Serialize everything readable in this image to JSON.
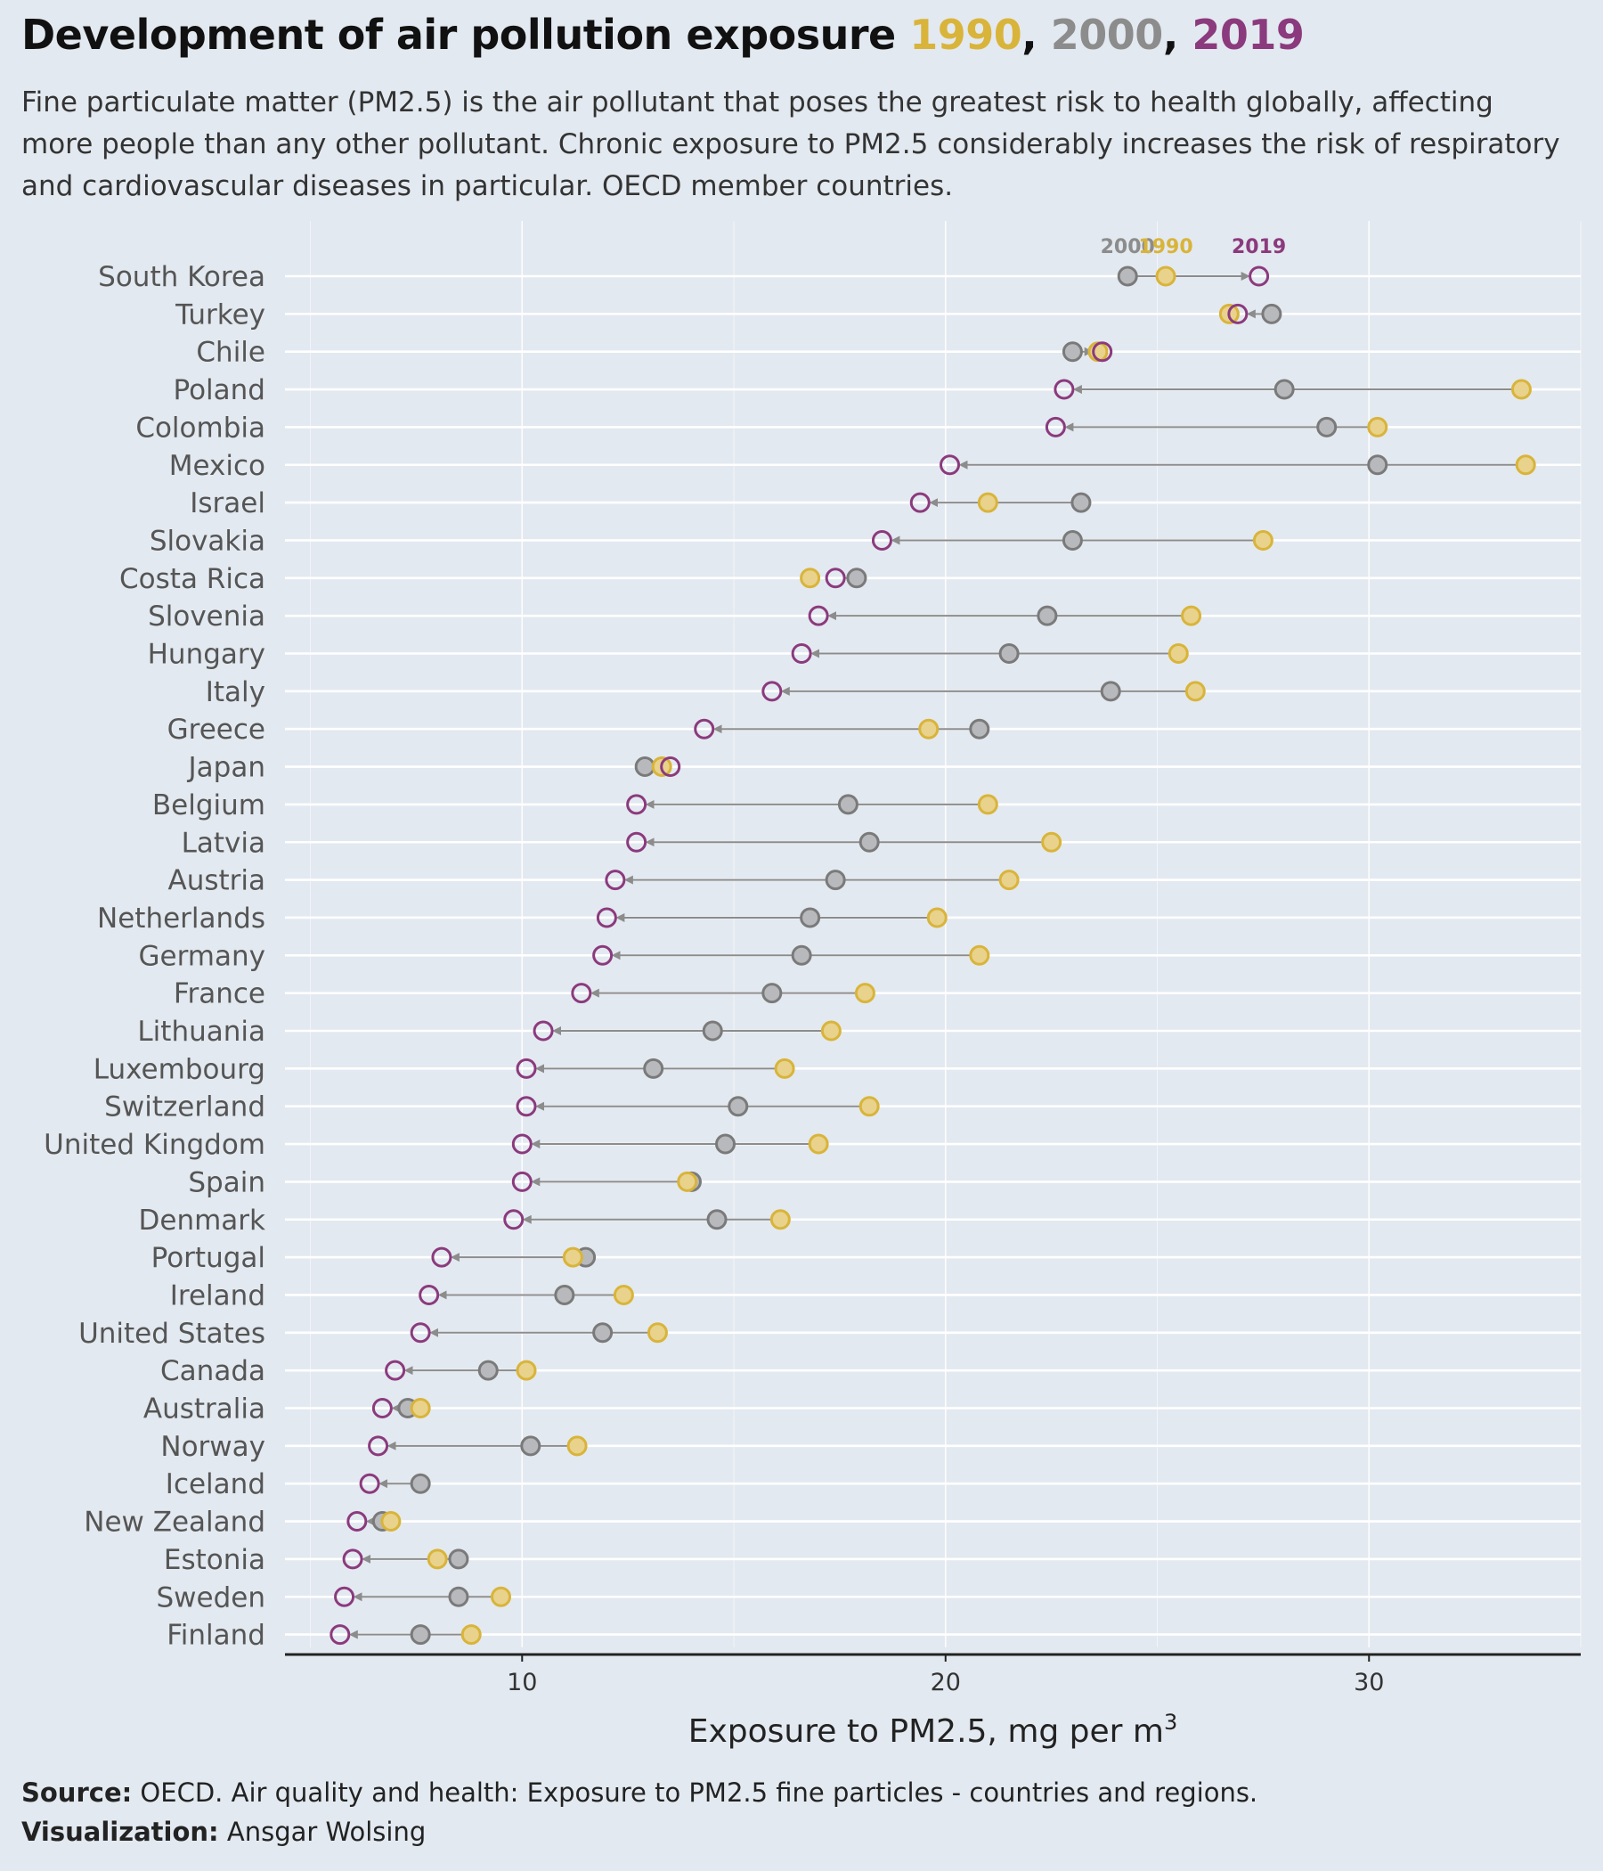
{
  "title": {
    "main": "Development of air pollution exposure",
    "y1990": "1990",
    "sep1": ",",
    "y2000": "2000",
    "sep2": ",",
    "y2019": "2019"
  },
  "subtitle": "Fine particulate matter (PM2.5) is the air pollutant that poses the greatest risk to health globally, affecting more people than any other pollutant. Chronic exposure to PM2.5 considerably increases the risk of respiratory and cardiovascular diseases in particular. OECD member countries.",
  "colors": {
    "y1990": "#d9b43a",
    "y2000": "#8c8c8c",
    "y2019": "#8b3a7d",
    "background": "#e3e9f0"
  },
  "caption": {
    "source_label": "Source:",
    "source_text": " OECD. Air quality and health: Exposure to PM2.5 fine particles - countries and regions.",
    "viz_label": "Visualization:",
    "viz_text": " Ansgar Wolsing"
  },
  "chart_data": {
    "type": "dumbbell",
    "title": "Development of air pollution exposure 1990, 2000, 2019",
    "xlabel": "Exposure to PM2.5, mg per m",
    "xlabel_sup": "3",
    "xlim": [
      4.4,
      35.0
    ],
    "xticks": [
      10,
      20,
      30
    ],
    "legend": {
      "y2000": "2000",
      "y1990": "1990",
      "y2019": "2019",
      "placement": "top-right, above first row"
    },
    "series_names": [
      "1990",
      "2000",
      "2019"
    ],
    "countries": [
      {
        "name": "South Korea",
        "y1990": 25.2,
        "y2000": 24.3,
        "y2019": 27.4
      },
      {
        "name": "Turkey",
        "y1990": 26.7,
        "y2000": 27.7,
        "y2019": 26.9
      },
      {
        "name": "Chile",
        "y1990": 23.6,
        "y2000": 23.0,
        "y2019": 23.7
      },
      {
        "name": "Poland",
        "y1990": 33.6,
        "y2000": 28.0,
        "y2019": 22.8
      },
      {
        "name": "Colombia",
        "y1990": 30.2,
        "y2000": 29.0,
        "y2019": 22.6
      },
      {
        "name": "Mexico",
        "y1990": 33.7,
        "y2000": 30.2,
        "y2019": 20.1
      },
      {
        "name": "Israel",
        "y1990": 21.0,
        "y2000": 23.2,
        "y2019": 19.4
      },
      {
        "name": "Slovakia",
        "y1990": 27.5,
        "y2000": 23.0,
        "y2019": 18.5
      },
      {
        "name": "Costa Rica",
        "y1990": 16.8,
        "y2000": 17.9,
        "y2019": 17.4
      },
      {
        "name": "Slovenia",
        "y1990": 25.8,
        "y2000": 22.4,
        "y2019": 17.0
      },
      {
        "name": "Hungary",
        "y1990": 25.5,
        "y2000": 21.5,
        "y2019": 16.6
      },
      {
        "name": "Italy",
        "y1990": 25.9,
        "y2000": 23.9,
        "y2019": 15.9
      },
      {
        "name": "Greece",
        "y1990": 19.6,
        "y2000": 20.8,
        "y2019": 14.3
      },
      {
        "name": "Japan",
        "y1990": 13.3,
        "y2000": 12.9,
        "y2019": 13.5
      },
      {
        "name": "Belgium",
        "y1990": 21.0,
        "y2000": 17.7,
        "y2019": 12.7
      },
      {
        "name": "Latvia",
        "y1990": 22.5,
        "y2000": 18.2,
        "y2019": 12.7
      },
      {
        "name": "Austria",
        "y1990": 21.5,
        "y2000": 17.4,
        "y2019": 12.2
      },
      {
        "name": "Netherlands",
        "y1990": 19.8,
        "y2000": 16.8,
        "y2019": 12.0
      },
      {
        "name": "Germany",
        "y1990": 20.8,
        "y2000": 16.6,
        "y2019": 11.9
      },
      {
        "name": "France",
        "y1990": 18.1,
        "y2000": 15.9,
        "y2019": 11.4
      },
      {
        "name": "Lithuania",
        "y1990": 17.3,
        "y2000": 14.5,
        "y2019": 10.5
      },
      {
        "name": "Luxembourg",
        "y1990": 16.2,
        "y2000": 13.1,
        "y2019": 10.1
      },
      {
        "name": "Switzerland",
        "y1990": 18.2,
        "y2000": 15.1,
        "y2019": 10.1
      },
      {
        "name": "United Kingdom",
        "y1990": 17.0,
        "y2000": 14.8,
        "y2019": 10.0
      },
      {
        "name": "Spain",
        "y1990": 13.9,
        "y2000": 14.0,
        "y2019": 10.0
      },
      {
        "name": "Denmark",
        "y1990": 16.1,
        "y2000": 14.6,
        "y2019": 9.8
      },
      {
        "name": "Portugal",
        "y1990": 11.2,
        "y2000": 11.5,
        "y2019": 8.1
      },
      {
        "name": "Ireland",
        "y1990": 12.4,
        "y2000": 11.0,
        "y2019": 7.8
      },
      {
        "name": "United States",
        "y1990": 13.2,
        "y2000": 11.9,
        "y2019": 7.6
      },
      {
        "name": "Canada",
        "y1990": 10.1,
        "y2000": 9.2,
        "y2019": 7.0
      },
      {
        "name": "Australia",
        "y1990": 7.6,
        "y2000": 7.3,
        "y2019": 6.7
      },
      {
        "name": "Norway",
        "y1990": 11.3,
        "y2000": 10.2,
        "y2019": 6.6
      },
      {
        "name": "Iceland",
        "y1990": null,
        "y2000": 7.6,
        "y2019": 6.4
      },
      {
        "name": "New Zealand",
        "y1990": 6.9,
        "y2000": 6.7,
        "y2019": 6.1
      },
      {
        "name": "Estonia",
        "y1990": 8.0,
        "y2000": 8.5,
        "y2019": 6.0
      },
      {
        "name": "Sweden",
        "y1990": 9.5,
        "y2000": 8.5,
        "y2019": 5.8
      },
      {
        "name": "Finland",
        "y1990": 8.8,
        "y2000": 7.6,
        "y2019": 5.7
      }
    ]
  }
}
